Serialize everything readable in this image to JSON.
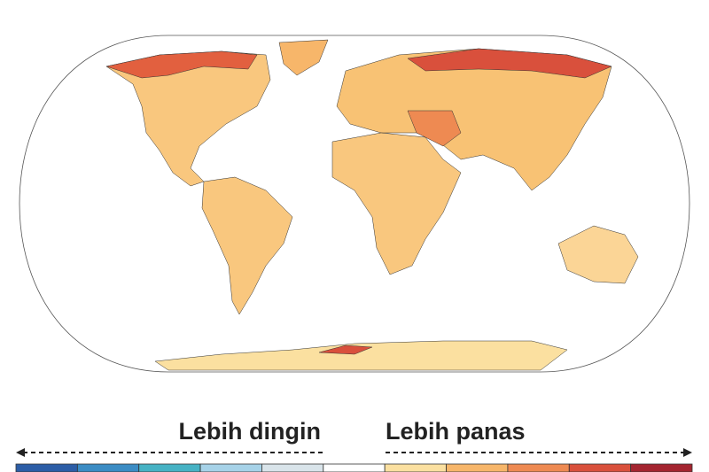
{
  "legend": {
    "cooler_label": "Lebih dingin",
    "warmer_label": "Lebih panas",
    "colors": [
      "#2c5da6",
      "#3b8cc4",
      "#46b2c4",
      "#a6d2e8",
      "#d9e4ea",
      "#ffffff",
      "#fbe0a0",
      "#f7b66a",
      "#ee8a52",
      "#d9503c",
      "#a42530"
    ]
  }
}
